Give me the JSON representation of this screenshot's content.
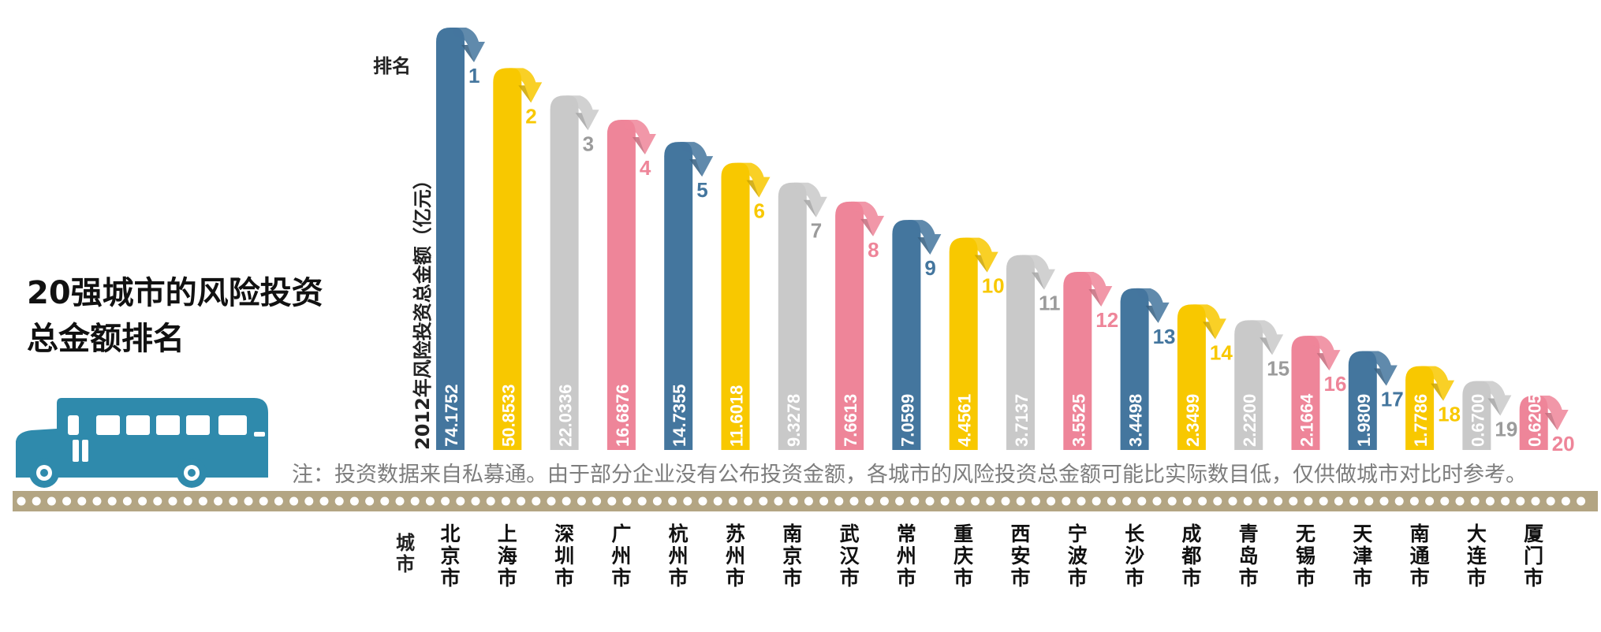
{
  "title": "20强城市的风险投资\n总金额排名",
  "rank_axis_label": "排名",
  "city_axis_label": "城市",
  "note": "注：投资数据来自私募通。由于部分企业没有公布投资金额，各城市的风险投资总金额可能比实际数目低，仅供做城市对比时参考。",
  "colors": {
    "blue": "#44769e",
    "yellow": "#f8c800",
    "gray": "#c9c9c9",
    "pink": "#ee8599",
    "road": "#b3a583",
    "bus": "#2f8aac"
  },
  "icons": {
    "bus": "bus-icon",
    "road": "road-strip"
  },
  "chart_data": {
    "type": "bar",
    "title": "20强城市的风险投资总金额排名",
    "ylabel": "2012年风险投资总金额（亿元）",
    "xlabel": "城市",
    "categories": [
      "北京市",
      "上海市",
      "深圳市",
      "广州市",
      "杭州市",
      "苏州市",
      "南京市",
      "武汉市",
      "常州市",
      "重庆市",
      "西安市",
      "宁波市",
      "长沙市",
      "成都市",
      "青岛市",
      "无锡市",
      "天津市",
      "南通市",
      "大连市",
      "厦门市"
    ],
    "values": [
      74.1752,
      50.8533,
      22.0336,
      16.6876,
      14.7355,
      11.6018,
      9.3278,
      7.6613,
      7.0599,
      4.4561,
      3.7137,
      3.5525,
      3.4498,
      2.3499,
      2.22,
      2.1664,
      1.9809,
      1.7786,
      0.67,
      0.6205
    ],
    "value_labels": [
      "74.1752",
      "50.8533",
      "22.0336",
      "16.6876",
      "14.7355",
      "11.6018",
      "9.3278",
      "7.6613",
      "7.0599",
      "4.4561",
      "3.7137",
      "3.5525",
      "3.4498",
      "2.3499",
      "2.2200",
      "2.1664",
      "1.9809",
      "1.7786",
      "0.6700",
      "0.6205"
    ],
    "ranks": [
      "1",
      "2",
      "3",
      "4",
      "5",
      "6",
      "7",
      "8",
      "9",
      "10",
      "11",
      "12",
      "13",
      "14",
      "15",
      "16",
      "17",
      "18",
      "19",
      "20"
    ],
    "bar_colors": [
      "#44769e",
      "#f8c800",
      "#c9c9c9",
      "#ee8599",
      "#44769e",
      "#f8c800",
      "#c9c9c9",
      "#ee8599",
      "#44769e",
      "#f8c800",
      "#c9c9c9",
      "#ee8599",
      "#44769e",
      "#f8c800",
      "#c9c9c9",
      "#ee8599",
      "#44769e",
      "#f8c800",
      "#c9c9c9",
      "#ee8599"
    ],
    "rank_text_colors": [
      "#44769e",
      "#f8c800",
      "#9b9b9b",
      "#ee8599",
      "#44769e",
      "#f8c800",
      "#9b9b9b",
      "#ee8599",
      "#44769e",
      "#f8c800",
      "#9b9b9b",
      "#ee8599",
      "#44769e",
      "#f8c800",
      "#9b9b9b",
      "#ee8599",
      "#44769e",
      "#f8c800",
      "#9b9b9b",
      "#ee8599"
    ],
    "legend": "none",
    "grid": false,
    "scale": "rank-ordered (not proportional)"
  }
}
